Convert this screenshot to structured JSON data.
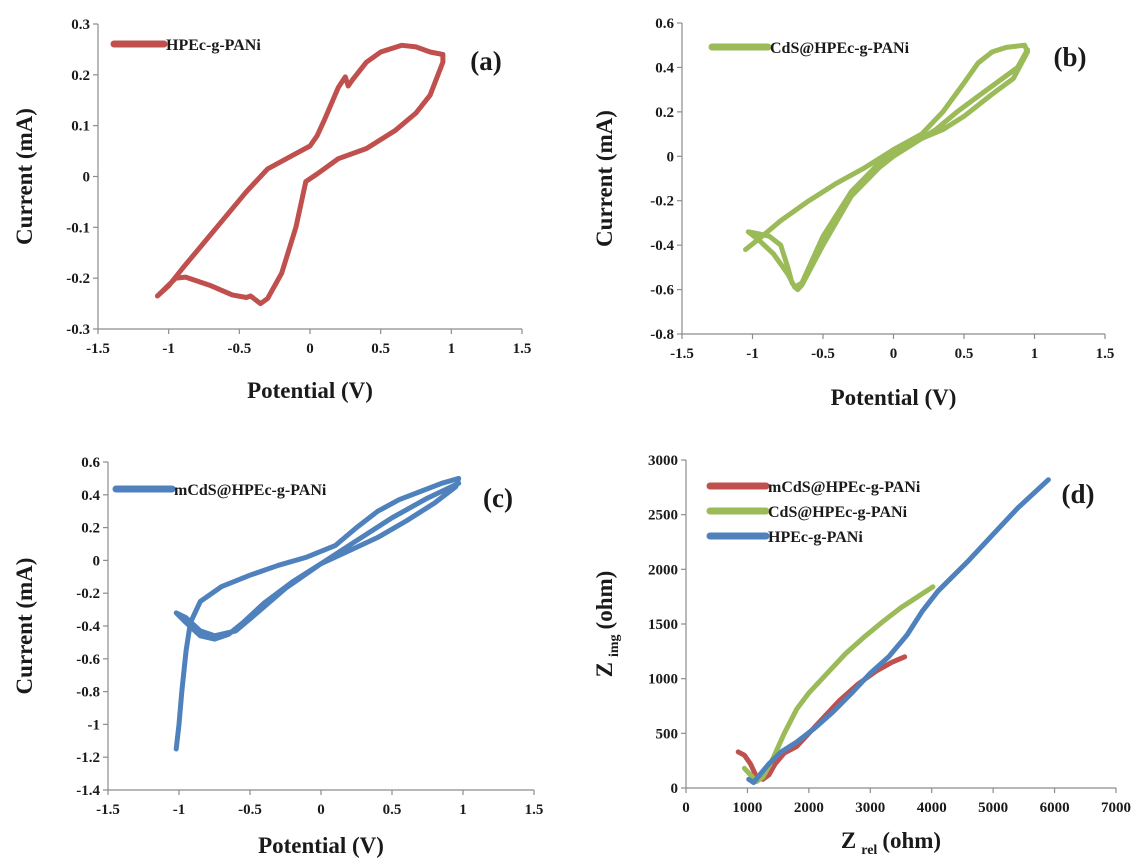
{
  "colors": {
    "red": "#c0504d",
    "green": "#9bbb59",
    "blue": "#4f81bd"
  },
  "chart_data": [
    {
      "type": "line",
      "panel_label": "(a)",
      "xlabel": "Potential (V)",
      "ylabel": "Current (mA)",
      "xlim": [
        -1.5,
        1.5
      ],
      "ylim": [
        -0.3,
        0.3
      ],
      "xticks": [
        -1.5,
        -1,
        -0.5,
        0,
        0.5,
        1,
        1.5
      ],
      "yticks": [
        -0.3,
        -0.2,
        -0.1,
        0,
        0.1,
        0.2,
        0.3
      ],
      "xtick_labels": [
        "-1.5",
        "-1",
        "-0.5",
        "0",
        "0.5",
        "1",
        "1.5"
      ],
      "ytick_labels": [
        "-0.3",
        "-0.2",
        "-0.1",
        "0",
        "0.1",
        "0.2",
        "0.3"
      ],
      "legend_position": "top-left",
      "grid": false,
      "series": [
        {
          "name": "HPEc-g-PANi",
          "color": "#c0504d",
          "points": [
            [
              -1.08,
              -0.235
            ],
            [
              -0.95,
              -0.2
            ],
            [
              -0.88,
              -0.198
            ],
            [
              -0.7,
              -0.215
            ],
            [
              -0.55,
              -0.233
            ],
            [
              -0.45,
              -0.238
            ],
            [
              -0.42,
              -0.235
            ],
            [
              -0.35,
              -0.25
            ],
            [
              -0.3,
              -0.24
            ],
            [
              -0.2,
              -0.19
            ],
            [
              -0.1,
              -0.1
            ],
            [
              -0.03,
              -0.01
            ],
            [
              0.05,
              0.005
            ],
            [
              0.2,
              0.035
            ],
            [
              0.4,
              0.055
            ],
            [
              0.6,
              0.09
            ],
            [
              0.75,
              0.125
            ],
            [
              0.85,
              0.16
            ],
            [
              0.94,
              0.225
            ],
            [
              0.94,
              0.24
            ],
            [
              0.85,
              0.245
            ],
            [
              0.75,
              0.255
            ],
            [
              0.65,
              0.258
            ],
            [
              0.5,
              0.245
            ],
            [
              0.4,
              0.225
            ],
            [
              0.3,
              0.19
            ],
            [
              0.27,
              0.178
            ],
            [
              0.25,
              0.196
            ],
            [
              0.2,
              0.175
            ],
            [
              0.1,
              0.11
            ],
            [
              0.05,
              0.08
            ],
            [
              0.0,
              0.06
            ],
            [
              -0.1,
              0.045
            ],
            [
              -0.3,
              0.015
            ],
            [
              -0.45,
              -0.03
            ],
            [
              -0.6,
              -0.08
            ],
            [
              -0.75,
              -0.13
            ],
            [
              -0.9,
              -0.18
            ],
            [
              -1.0,
              -0.215
            ],
            [
              -1.08,
              -0.235
            ]
          ]
        }
      ]
    },
    {
      "type": "line",
      "panel_label": "(b)",
      "xlabel": "Potential (V)",
      "ylabel": "Current (mA)",
      "xlim": [
        -1.5,
        1.5
      ],
      "ylim": [
        -0.8,
        0.6
      ],
      "xticks": [
        -1.5,
        -1,
        -0.5,
        0,
        0.5,
        1,
        1.5
      ],
      "yticks": [
        -0.8,
        -0.6,
        -0.4,
        -0.2,
        0,
        0.2,
        0.4,
        0.6
      ],
      "xtick_labels": [
        "-1.5",
        "-1",
        "-0.5",
        "0",
        "0.5",
        "1",
        "1.5"
      ],
      "ytick_labels": [
        "-0.8",
        "-0.6",
        "-0.4",
        "-0.2",
        "0",
        "0.2",
        "0.4",
        "0.6"
      ],
      "legend_position": "top-left",
      "grid": false,
      "series": [
        {
          "name": "CdS@HPEc-g-PANi",
          "color": "#9bbb59",
          "points": [
            [
              -1.05,
              -0.42
            ],
            [
              -0.95,
              -0.37
            ],
            [
              -0.8,
              -0.29
            ],
            [
              -0.6,
              -0.2
            ],
            [
              -0.4,
              -0.12
            ],
            [
              -0.2,
              -0.05
            ],
            [
              0.0,
              0.03
            ],
            [
              0.2,
              0.1
            ],
            [
              0.35,
              0.2
            ],
            [
              0.5,
              0.33
            ],
            [
              0.6,
              0.42
            ],
            [
              0.7,
              0.47
            ],
            [
              0.8,
              0.49
            ],
            [
              0.93,
              0.5
            ],
            [
              0.95,
              0.47
            ],
            [
              0.85,
              0.35
            ],
            [
              0.7,
              0.28
            ],
            [
              0.5,
              0.18
            ],
            [
              0.35,
              0.12
            ],
            [
              0.2,
              0.08
            ],
            [
              0.1,
              0.04
            ],
            [
              0.0,
              0.0
            ],
            [
              -0.1,
              -0.05
            ],
            [
              -0.3,
              -0.18
            ],
            [
              -0.5,
              -0.4
            ],
            [
              -0.6,
              -0.52
            ],
            [
              -0.65,
              -0.58
            ],
            [
              -0.68,
              -0.6
            ],
            [
              -0.72,
              -0.57
            ],
            [
              -0.75,
              -0.5
            ],
            [
              -0.8,
              -0.4
            ],
            [
              -0.88,
              -0.36
            ],
            [
              -0.95,
              -0.35
            ],
            [
              -1.03,
              -0.34
            ],
            [
              -0.95,
              -0.38
            ],
            [
              -0.85,
              -0.44
            ],
            [
              -0.75,
              -0.53
            ],
            [
              -0.7,
              -0.59
            ],
            [
              -0.65,
              -0.57
            ],
            [
              -0.5,
              -0.36
            ],
            [
              -0.3,
              -0.16
            ],
            [
              -0.1,
              -0.03
            ],
            [
              0.1,
              0.05
            ],
            [
              0.2,
              0.08
            ],
            [
              0.3,
              0.12
            ],
            [
              0.45,
              0.2
            ],
            [
              0.6,
              0.27
            ],
            [
              0.75,
              0.34
            ],
            [
              0.88,
              0.4
            ],
            [
              0.95,
              0.48
            ]
          ]
        }
      ]
    },
    {
      "type": "line",
      "panel_label": "(c)",
      "xlabel": "Potential (V)",
      "ylabel": "Current (mA)",
      "xlim": [
        -1.5,
        1.5
      ],
      "ylim": [
        -1.4,
        0.6
      ],
      "xticks": [
        -1.5,
        -1,
        -0.5,
        0,
        0.5,
        1,
        1.5
      ],
      "yticks": [
        -1.4,
        -1.2,
        -1,
        -0.8,
        -0.6,
        -0.4,
        -0.2,
        0,
        0.2,
        0.4,
        0.6
      ],
      "xtick_labels": [
        "-1.5",
        "-1",
        "-0.5",
        "0",
        "0.5",
        "1",
        "1.5"
      ],
      "ytick_labels": [
        "-1.4",
        "-1.2",
        "-1",
        "-0.8",
        "-0.6",
        "-0.4",
        "-0.2",
        "0",
        "0.2",
        "0.4",
        "0.6"
      ],
      "legend_position": "top-left",
      "grid": false,
      "series": [
        {
          "name": "mCdS@HPEc-g-PANi",
          "color": "#4f81bd",
          "points": [
            [
              -1.02,
              -1.15
            ],
            [
              -1.0,
              -1.0
            ],
            [
              -0.98,
              -0.8
            ],
            [
              -0.95,
              -0.55
            ],
            [
              -0.92,
              -0.38
            ],
            [
              -0.85,
              -0.25
            ],
            [
              -0.7,
              -0.16
            ],
            [
              -0.5,
              -0.09
            ],
            [
              -0.3,
              -0.03
            ],
            [
              -0.1,
              0.02
            ],
            [
              0.1,
              0.09
            ],
            [
              0.25,
              0.2
            ],
            [
              0.4,
              0.3
            ],
            [
              0.55,
              0.37
            ],
            [
              0.7,
              0.42
            ],
            [
              0.85,
              0.47
            ],
            [
              0.97,
              0.5
            ],
            [
              0.95,
              0.45
            ],
            [
              0.8,
              0.35
            ],
            [
              0.6,
              0.24
            ],
            [
              0.4,
              0.14
            ],
            [
              0.2,
              0.06
            ],
            [
              0.0,
              -0.02
            ],
            [
              -0.2,
              -0.13
            ],
            [
              -0.4,
              -0.26
            ],
            [
              -0.55,
              -0.38
            ],
            [
              -0.65,
              -0.45
            ],
            [
              -0.75,
              -0.48
            ],
            [
              -0.85,
              -0.46
            ],
            [
              -0.95,
              -0.38
            ],
            [
              -1.02,
              -0.32
            ],
            [
              -0.95,
              -0.35
            ],
            [
              -0.85,
              -0.43
            ],
            [
              -0.75,
              -0.46
            ],
            [
              -0.6,
              -0.43
            ],
            [
              -0.45,
              -0.32
            ],
            [
              -0.25,
              -0.17
            ],
            [
              0.0,
              -0.02
            ],
            [
              0.25,
              0.12
            ],
            [
              0.5,
              0.26
            ],
            [
              0.75,
              0.38
            ],
            [
              0.97,
              0.47
            ]
          ]
        }
      ]
    },
    {
      "type": "line",
      "panel_label": "(d)",
      "xlabel": "Z rel (ohm)",
      "ylabel": "Z img (ohm)",
      "xlim": [
        0,
        7000
      ],
      "ylim": [
        0,
        3000
      ],
      "xticks": [
        0,
        1000,
        2000,
        3000,
        4000,
        5000,
        6000,
        7000
      ],
      "yticks": [
        0,
        500,
        1000,
        1500,
        2000,
        2500,
        3000
      ],
      "xtick_labels": [
        "0",
        "1000",
        "2000",
        "3000",
        "4000",
        "5000",
        "6000",
        "7000"
      ],
      "ytick_labels": [
        "0",
        "500",
        "1000",
        "1500",
        "2000",
        "2500",
        "3000"
      ],
      "legend_position": "top-left",
      "grid": false,
      "series": [
        {
          "name": "mCdS@HPEc-g-PANi",
          "color": "#c0504d",
          "points": [
            [
              850,
              330
            ],
            [
              950,
              300
            ],
            [
              1050,
              220
            ],
            [
              1150,
              100
            ],
            [
              1250,
              80
            ],
            [
              1350,
              120
            ],
            [
              1450,
              220
            ],
            [
              1600,
              320
            ],
            [
              1800,
              380
            ],
            [
              2000,
              500
            ],
            [
              2200,
              620
            ],
            [
              2500,
              800
            ],
            [
              2800,
              950
            ],
            [
              3100,
              1070
            ],
            [
              3350,
              1150
            ],
            [
              3560,
              1200
            ]
          ]
        },
        {
          "name": "CdS@HPEc-g-PANi",
          "color": "#9bbb59",
          "points": [
            [
              950,
              180
            ],
            [
              1050,
              120
            ],
            [
              1150,
              60
            ],
            [
              1250,
              100
            ],
            [
              1400,
              250
            ],
            [
              1600,
              500
            ],
            [
              1800,
              720
            ],
            [
              2000,
              870
            ],
            [
              2300,
              1050
            ],
            [
              2600,
              1230
            ],
            [
              2900,
              1380
            ],
            [
              3200,
              1520
            ],
            [
              3500,
              1650
            ],
            [
              3800,
              1760
            ],
            [
              4020,
              1840
            ]
          ]
        },
        {
          "name": "HPEc-g-PANi",
          "color": "#4f81bd",
          "points": [
            [
              1020,
              80
            ],
            [
              1100,
              50
            ],
            [
              1200,
              120
            ],
            [
              1350,
              220
            ],
            [
              1550,
              330
            ],
            [
              1800,
              420
            ],
            [
              2100,
              550
            ],
            [
              2400,
              700
            ],
            [
              2700,
              870
            ],
            [
              3000,
              1050
            ],
            [
              3300,
              1200
            ],
            [
              3600,
              1400
            ],
            [
              3850,
              1620
            ],
            [
              4100,
              1800
            ],
            [
              4600,
              2080
            ],
            [
              5000,
              2320
            ],
            [
              5400,
              2560
            ],
            [
              5900,
              2820
            ]
          ]
        }
      ]
    }
  ]
}
